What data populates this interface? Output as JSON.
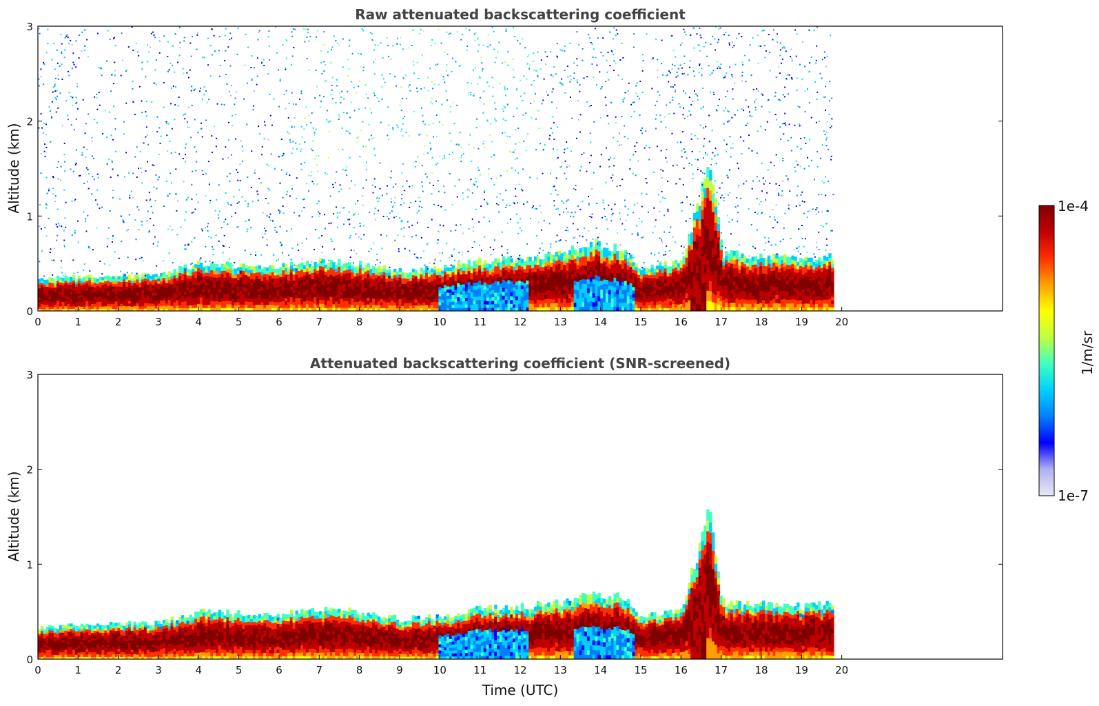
{
  "chart_data": [
    {
      "type": "heatmap",
      "title": "Raw attenuated backscattering coefficient",
      "xlabel": "",
      "ylabel": "Altitude (km)",
      "xlim": [
        0,
        24
      ],
      "ylim": [
        0,
        3
      ],
      "x_ticks": [
        0,
        1,
        2,
        3,
        4,
        5,
        6,
        7,
        8,
        9,
        10,
        11,
        12,
        13,
        14,
        15,
        16,
        17,
        18,
        19,
        20
      ],
      "y_ticks": [
        0,
        1,
        2,
        3
      ],
      "data_extent_time": [
        0,
        19.8
      ],
      "screened": false,
      "boundary_layer_top_km": [
        {
          "t": 0,
          "z": 0.33
        },
        {
          "t": 1,
          "z": 0.36
        },
        {
          "t": 2,
          "z": 0.37
        },
        {
          "t": 3,
          "z": 0.38
        },
        {
          "t": 4,
          "z": 0.5
        },
        {
          "t": 5,
          "z": 0.48
        },
        {
          "t": 6,
          "z": 0.47
        },
        {
          "t": 7,
          "z": 0.52
        },
        {
          "t": 8,
          "z": 0.5
        },
        {
          "t": 9,
          "z": 0.42
        },
        {
          "t": 10,
          "z": 0.45
        },
        {
          "t": 11,
          "z": 0.53
        },
        {
          "t": 12,
          "z": 0.55
        },
        {
          "t": 13,
          "z": 0.6
        },
        {
          "t": 13.7,
          "z": 0.72
        },
        {
          "t": 14.5,
          "z": 0.65
        },
        {
          "t": 15,
          "z": 0.45
        },
        {
          "t": 16,
          "z": 0.53
        },
        {
          "t": 16.7,
          "z": 1.6
        },
        {
          "t": 17,
          "z": 0.6
        },
        {
          "t": 18,
          "z": 0.58
        },
        {
          "t": 19,
          "z": 0.55
        },
        {
          "t": 19.8,
          "z": 0.58
        }
      ]
    },
    {
      "type": "heatmap",
      "title": "Attenuated backscattering coefficient (SNR-screened)",
      "xlabel": "Time (UTC)",
      "ylabel": "Altitude (km)",
      "xlim": [
        0,
        24
      ],
      "ylim": [
        0,
        3
      ],
      "x_ticks": [
        0,
        1,
        2,
        3,
        4,
        5,
        6,
        7,
        8,
        9,
        10,
        11,
        12,
        13,
        14,
        15,
        16,
        17,
        18,
        19,
        20
      ],
      "y_ticks": [
        0,
        1,
        2,
        3
      ],
      "data_extent_time": [
        0,
        19.8
      ],
      "screened": true,
      "boundary_layer_top_km": [
        {
          "t": 0,
          "z": 0.33
        },
        {
          "t": 1,
          "z": 0.36
        },
        {
          "t": 2,
          "z": 0.37
        },
        {
          "t": 3,
          "z": 0.38
        },
        {
          "t": 4,
          "z": 0.5
        },
        {
          "t": 5,
          "z": 0.48
        },
        {
          "t": 6,
          "z": 0.47
        },
        {
          "t": 7,
          "z": 0.52
        },
        {
          "t": 8,
          "z": 0.5
        },
        {
          "t": 9,
          "z": 0.42
        },
        {
          "t": 10,
          "z": 0.45
        },
        {
          "t": 11,
          "z": 0.53
        },
        {
          "t": 12,
          "z": 0.55
        },
        {
          "t": 13,
          "z": 0.6
        },
        {
          "t": 13.7,
          "z": 0.72
        },
        {
          "t": 14.5,
          "z": 0.65
        },
        {
          "t": 15,
          "z": 0.45
        },
        {
          "t": 16,
          "z": 0.53
        },
        {
          "t": 16.7,
          "z": 1.6
        },
        {
          "t": 17,
          "z": 0.6
        },
        {
          "t": 18,
          "z": 0.58
        },
        {
          "t": 19,
          "z": 0.55
        },
        {
          "t": 19.8,
          "z": 0.58
        }
      ]
    }
  ],
  "colorbar": {
    "min_label": "1e-7",
    "max_label": "1e-4",
    "label": "1/m/sr",
    "colors": [
      "#e8e8f8",
      "#b0b0f0",
      "#0000ff",
      "#0080ff",
      "#00d0ff",
      "#40ffc0",
      "#c0ff40",
      "#ffff00",
      "#ffa000",
      "#ff3000",
      "#c00000",
      "#800000"
    ]
  }
}
